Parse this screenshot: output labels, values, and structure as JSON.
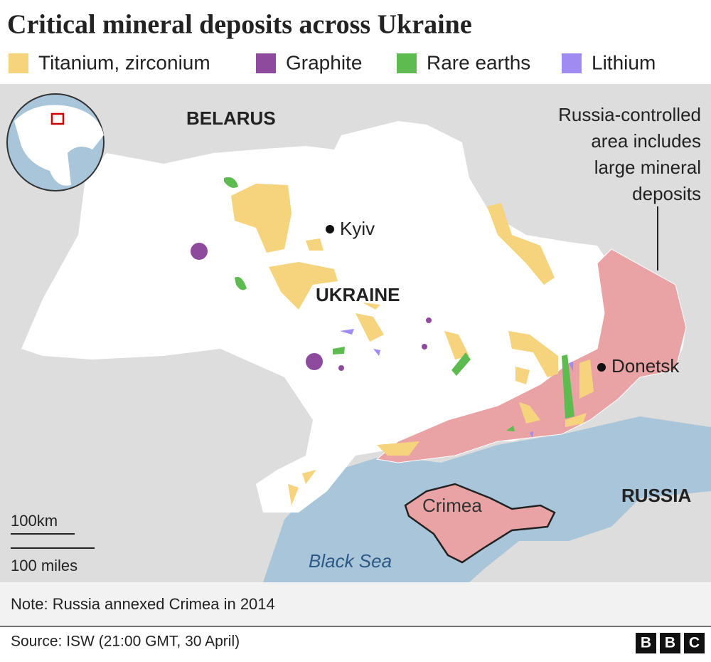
{
  "header": {
    "title": "Critical mineral deposits across Ukraine"
  },
  "legend": [
    {
      "label": "Titanium, zirconium",
      "color": "#f6d47e"
    },
    {
      "label": "Graphite",
      "color": "#8e4a9c"
    },
    {
      "label": "Rare earths",
      "color": "#5dbb4f"
    },
    {
      "label": "Lithium",
      "color": "#9f8bf2"
    }
  ],
  "map": {
    "countries": [
      "BELARUS",
      "UKRAINE",
      "RUSSIA"
    ],
    "cities": [
      "Kyiv",
      "Donetsk"
    ],
    "regions": [
      "Crimea"
    ],
    "sea": "Black Sea",
    "annotation": [
      "Russia-controlled",
      "area includes",
      "large mineral",
      "deposits"
    ],
    "scale": [
      "100km",
      "100 miles"
    ]
  },
  "note": "Note: Russia annexed Crimea in 2014",
  "source": "Source: ISW (21:00 GMT, 30 April)",
  "logo": [
    "B",
    "B",
    "C"
  ]
}
